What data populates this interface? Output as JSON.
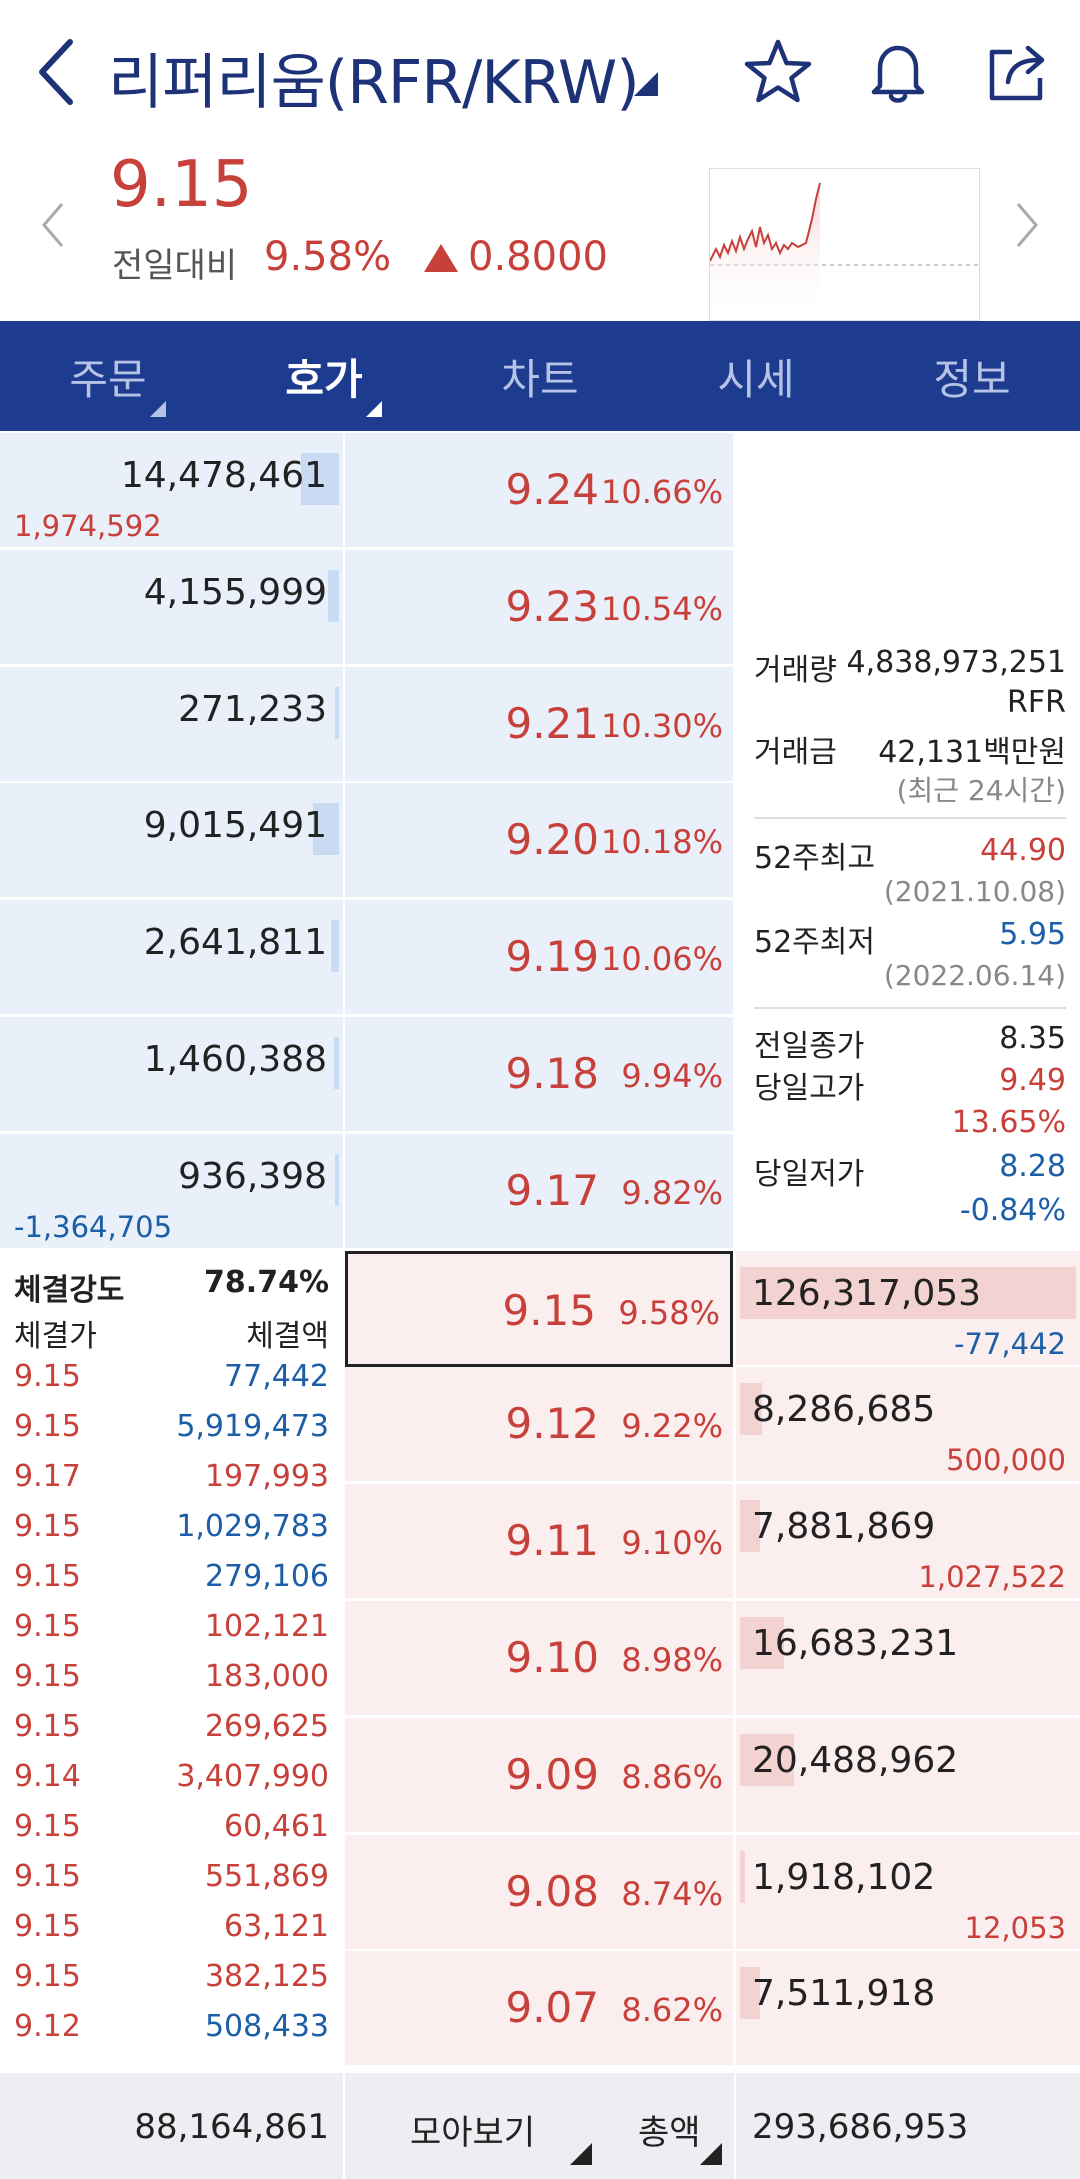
{
  "header": {
    "title": "리퍼리움(RFR/KRW)"
  },
  "price": {
    "current": "9.15",
    "change_label": "전일대비",
    "change_rate": "9.58%",
    "change_amount": "0.8000"
  },
  "tabs": [
    {
      "label": "주문"
    },
    {
      "label": "호가"
    },
    {
      "label": "차트"
    },
    {
      "label": "시세"
    },
    {
      "label": "정보"
    }
  ],
  "asks": [
    {
      "qty": "14,478,461",
      "sub": "1,974,592",
      "price": "9.24",
      "rate": "10.66%",
      "fill": 0.12
    },
    {
      "qty": "4,155,999",
      "sub": "",
      "price": "9.23",
      "rate": "10.54%",
      "fill": 0.035
    },
    {
      "qty": "271,233",
      "sub": "",
      "price": "9.21",
      "rate": "10.30%",
      "fill": 0.01
    },
    {
      "qty": "9,015,491",
      "sub": "",
      "price": "9.20",
      "rate": "10.18%",
      "fill": 0.08
    },
    {
      "qty": "2,641,811",
      "sub": "",
      "price": "9.19",
      "rate": "10.06%",
      "fill": 0.025
    },
    {
      "qty": "1,460,388",
      "sub": "",
      "price": "9.18",
      "rate": "9.94%",
      "fill": 0.015
    },
    {
      "qty": "936,398",
      "sub": "-1,364,705",
      "price": "9.17",
      "rate": "9.82%",
      "fill": 0.01
    }
  ],
  "bids": [
    {
      "qty": "126,317,053",
      "sub": "-77,442",
      "price": "9.15",
      "rate": "9.58%",
      "fill": 1.0
    },
    {
      "qty": "8,286,685",
      "sub": "500,000",
      "price": "9.12",
      "rate": "9.22%",
      "fill": 0.065
    },
    {
      "qty": "7,881,869",
      "sub": "1,027,522",
      "price": "9.11",
      "rate": "9.10%",
      "fill": 0.06
    },
    {
      "qty": "16,683,231",
      "sub": "",
      "price": "9.10",
      "rate": "8.98%",
      "fill": 0.13
    },
    {
      "qty": "20,488,962",
      "sub": "",
      "price": "9.09",
      "rate": "8.86%",
      "fill": 0.16
    },
    {
      "qty": "1,918,102",
      "sub": "12,053",
      "price": "9.08",
      "rate": "8.74%",
      "fill": 0.015
    },
    {
      "qty": "7,511,918",
      "sub": "",
      "price": "9.07",
      "rate": "8.62%",
      "fill": 0.06
    }
  ],
  "info": {
    "volume_label": "거래량",
    "volume": "4,838,973,251",
    "volume_unit": "RFR",
    "amount_label": "거래금",
    "amount": "42,131백만원",
    "recent": "(최근 24시간)",
    "high52_label": "52주최고",
    "high52": "44.90",
    "high52_date": "(2021.10.08)",
    "low52_label": "52주최저",
    "low52": "5.95",
    "low52_date": "(2022.06.14)",
    "prev_close_label": "전일종가",
    "prev_close": "8.35",
    "day_high_label": "당일고가",
    "day_high": "9.49",
    "day_high_rate": "13.65%",
    "day_low_label": "당일저가",
    "day_low": "8.28",
    "day_low_rate": "-0.84%"
  },
  "trades": {
    "strength_label": "체결강도",
    "strength": "78.74%",
    "col_price": "체결가",
    "col_amount": "체결액",
    "rows": [
      {
        "price": "9.15",
        "amount": "77,442",
        "side": "sell"
      },
      {
        "price": "9.15",
        "amount": "5,919,473",
        "side": "sell"
      },
      {
        "price": "9.17",
        "amount": "197,993",
        "side": "buy"
      },
      {
        "price": "9.15",
        "amount": "1,029,783",
        "side": "sell"
      },
      {
        "price": "9.15",
        "amount": "279,106",
        "side": "sell"
      },
      {
        "price": "9.15",
        "amount": "102,121",
        "side": "buy"
      },
      {
        "price": "9.15",
        "amount": "183,000",
        "side": "buy"
      },
      {
        "price": "9.15",
        "amount": "269,625",
        "side": "buy"
      },
      {
        "price": "9.14",
        "amount": "3,407,990",
        "side": "buy"
      },
      {
        "price": "9.15",
        "amount": "60,461",
        "side": "buy"
      },
      {
        "price": "9.15",
        "amount": "551,869",
        "side": "buy"
      },
      {
        "price": "9.15",
        "amount": "63,121",
        "side": "buy"
      },
      {
        "price": "9.15",
        "amount": "382,125",
        "side": "buy"
      },
      {
        "price": "9.12",
        "amount": "508,433",
        "side": "sell"
      }
    ]
  },
  "footer": {
    "ask_total": "88,164,861",
    "view_label": "모아보기",
    "sum_label": "총액",
    "bid_total": "293,686,953"
  },
  "colors": {
    "navy": "#1e3c8f",
    "up": "#c8403a",
    "down": "#1c5ea8"
  }
}
